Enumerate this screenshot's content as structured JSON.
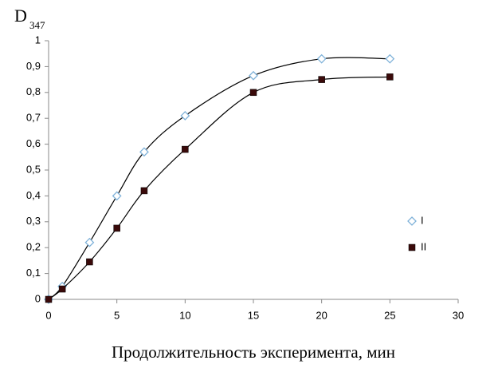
{
  "chart_data": {
    "type": "scatter",
    "y_label": "D",
    "y_label_sub": "347",
    "x_label": "Продолжительность эксперимента, мин",
    "x": [
      0,
      1,
      3,
      5,
      7,
      10,
      15,
      20,
      25
    ],
    "series": [
      {
        "name": "I",
        "color": "#7fb2d9",
        "marker": "diamond",
        "values": [
          0,
          0.05,
          0.22,
          0.4,
          0.57,
          0.71,
          0.865,
          0.93,
          0.93
        ]
      },
      {
        "name": "II",
        "color": "#3a0a0a",
        "marker": "square",
        "values": [
          0,
          0.04,
          0.145,
          0.275,
          0.42,
          0.58,
          0.8,
          0.85,
          0.86
        ]
      }
    ],
    "trendline": true,
    "xlim": [
      0,
      30
    ],
    "xticks": [
      0,
      5,
      10,
      15,
      20,
      25,
      30
    ],
    "ylim": [
      0,
      1
    ],
    "yticks": [
      0,
      {
        "value": 0.1,
        "label": "0,1"
      },
      {
        "value": 0.2,
        "label": "0,2"
      },
      {
        "value": 0.3,
        "label": "0,3"
      },
      {
        "value": 0.4,
        "label": "0,4"
      },
      {
        "value": 0.5,
        "label": "0,5"
      },
      {
        "value": 0.6,
        "label": "0,6"
      },
      {
        "value": 0.7,
        "label": "0,7"
      },
      {
        "value": 0.8,
        "label": "0,8"
      },
      {
        "value": 0.9,
        "label": "0,9"
      },
      1
    ],
    "grid": false,
    "legend": "right"
  }
}
